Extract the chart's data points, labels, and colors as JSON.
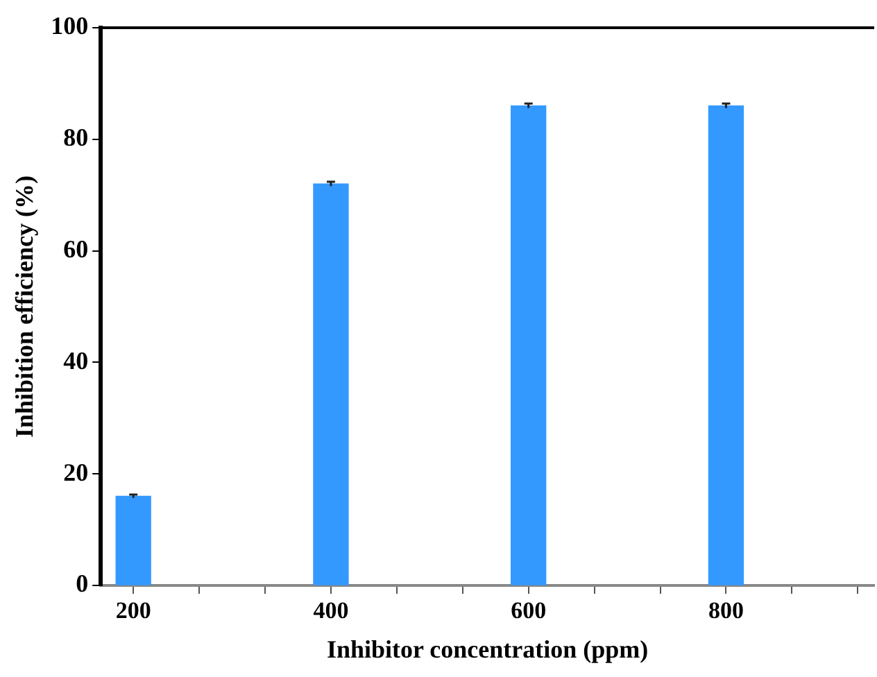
{
  "chart_data": {
    "type": "bar",
    "xlabel": "Inhibitor concentration (ppm)",
    "ylabel": "Inhibition efficiency (%)",
    "x": [
      200,
      400,
      600,
      800
    ],
    "values": [
      16,
      72,
      86,
      86
    ],
    "errors": [
      0.3,
      0.4,
      0.4,
      0.4
    ],
    "color": "#3399ff",
    "xlim": [
      167,
      950
    ],
    "xticks": [
      200,
      {
        "value": 266.67,
        "label": null
      },
      {
        "value": 333.33,
        "label": null
      },
      400,
      {
        "value": 466.67,
        "label": null
      },
      {
        "value": 533.33,
        "label": null
      },
      600,
      {
        "value": 666.67,
        "label": null
      },
      {
        "value": 733.33,
        "label": null
      },
      800,
      {
        "value": 866.67,
        "label": null
      },
      {
        "value": 933.33,
        "label": null
      }
    ],
    "ylim": [
      0,
      100
    ],
    "yticks": [
      0,
      20,
      40,
      60,
      80,
      100
    ],
    "grid": false,
    "legend": false
  }
}
